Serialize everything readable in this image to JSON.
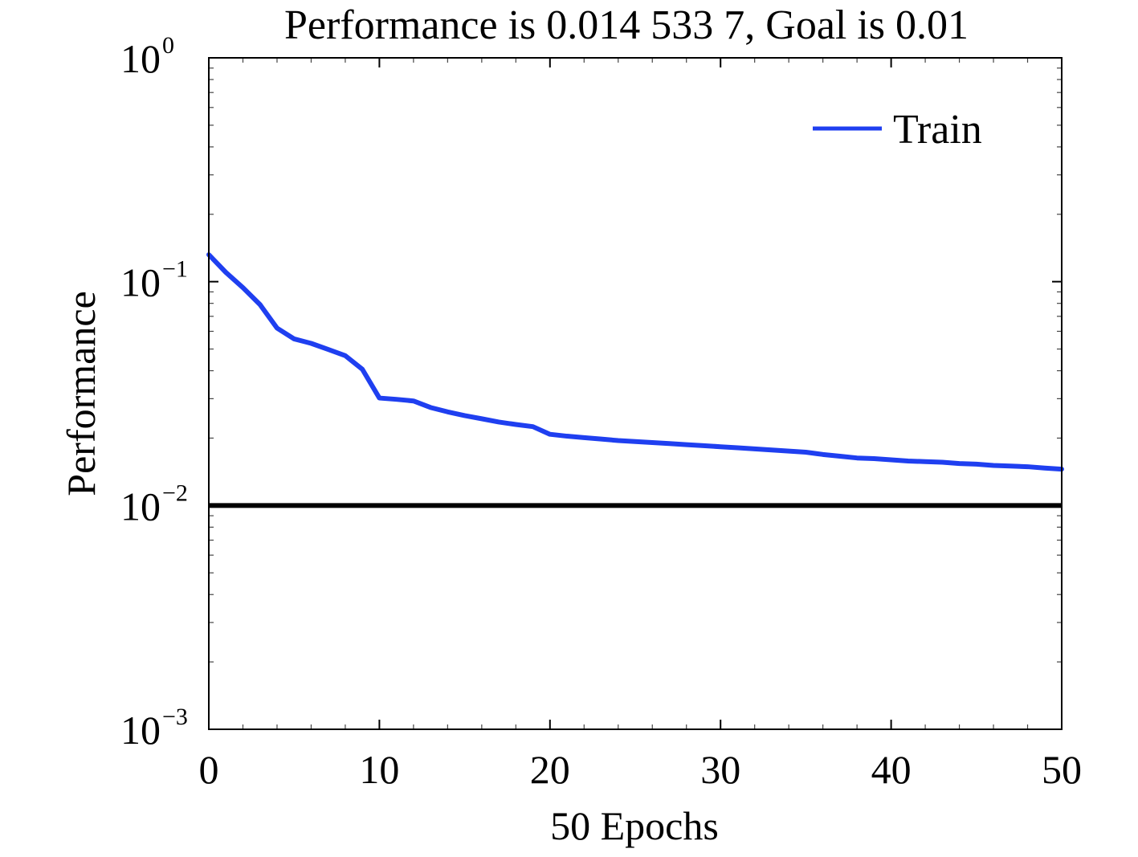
{
  "chart_data": {
    "type": "line",
    "title": "Performance is 0.014 533 7, Goal is 0.01",
    "xlabel": "50 Epochs",
    "ylabel": "Performance",
    "xlim": [
      0,
      50
    ],
    "ylim": [
      0.001,
      1
    ],
    "yscale": "log",
    "x_ticks": [
      0,
      10,
      20,
      30,
      40,
      50
    ],
    "x_tick_labels": [
      "0",
      "10",
      "20",
      "30",
      "40",
      "50"
    ],
    "y_ticks": [
      {
        "value": 1,
        "base": "10",
        "exp": "0"
      },
      {
        "value": 0.1,
        "base": "10",
        "exp": "−1"
      },
      {
        "value": 0.01,
        "base": "10",
        "exp": "−2"
      },
      {
        "value": 0.001,
        "base": "10",
        "exp": "−3"
      }
    ],
    "legend": {
      "position": "top-right",
      "entries": [
        "Train"
      ]
    },
    "series": [
      {
        "name": "Train",
        "color": "#1f3ff0",
        "x": [
          0,
          1,
          2,
          3,
          4,
          5,
          6,
          7,
          8,
          9,
          10,
          11,
          12,
          13,
          14,
          15,
          16,
          17,
          18,
          19,
          20,
          21,
          22,
          23,
          24,
          25,
          26,
          27,
          28,
          29,
          30,
          31,
          32,
          33,
          34,
          35,
          36,
          37,
          38,
          39,
          40,
          41,
          42,
          43,
          44,
          45,
          46,
          47,
          48,
          49,
          50
        ],
        "y": [
          0.132,
          0.11,
          0.094,
          0.079,
          0.062,
          0.0555,
          0.053,
          0.0498,
          0.0467,
          0.0406,
          0.0302,
          0.0298,
          0.0293,
          0.0274,
          0.0262,
          0.0252,
          0.0244,
          0.0236,
          0.023,
          0.0225,
          0.0208,
          0.0204,
          0.0201,
          0.0198,
          0.0195,
          0.0193,
          0.0191,
          0.0189,
          0.0187,
          0.0185,
          0.0183,
          0.0181,
          0.0179,
          0.0177,
          0.0175,
          0.0173,
          0.0169,
          0.0166,
          0.0163,
          0.0162,
          0.016,
          0.0158,
          0.0157,
          0.0156,
          0.0154,
          0.0153,
          0.0151,
          0.015,
          0.0149,
          0.0147,
          0.014534
        ]
      }
    ],
    "goal": {
      "value": 0.01,
      "color": "#000000"
    }
  }
}
